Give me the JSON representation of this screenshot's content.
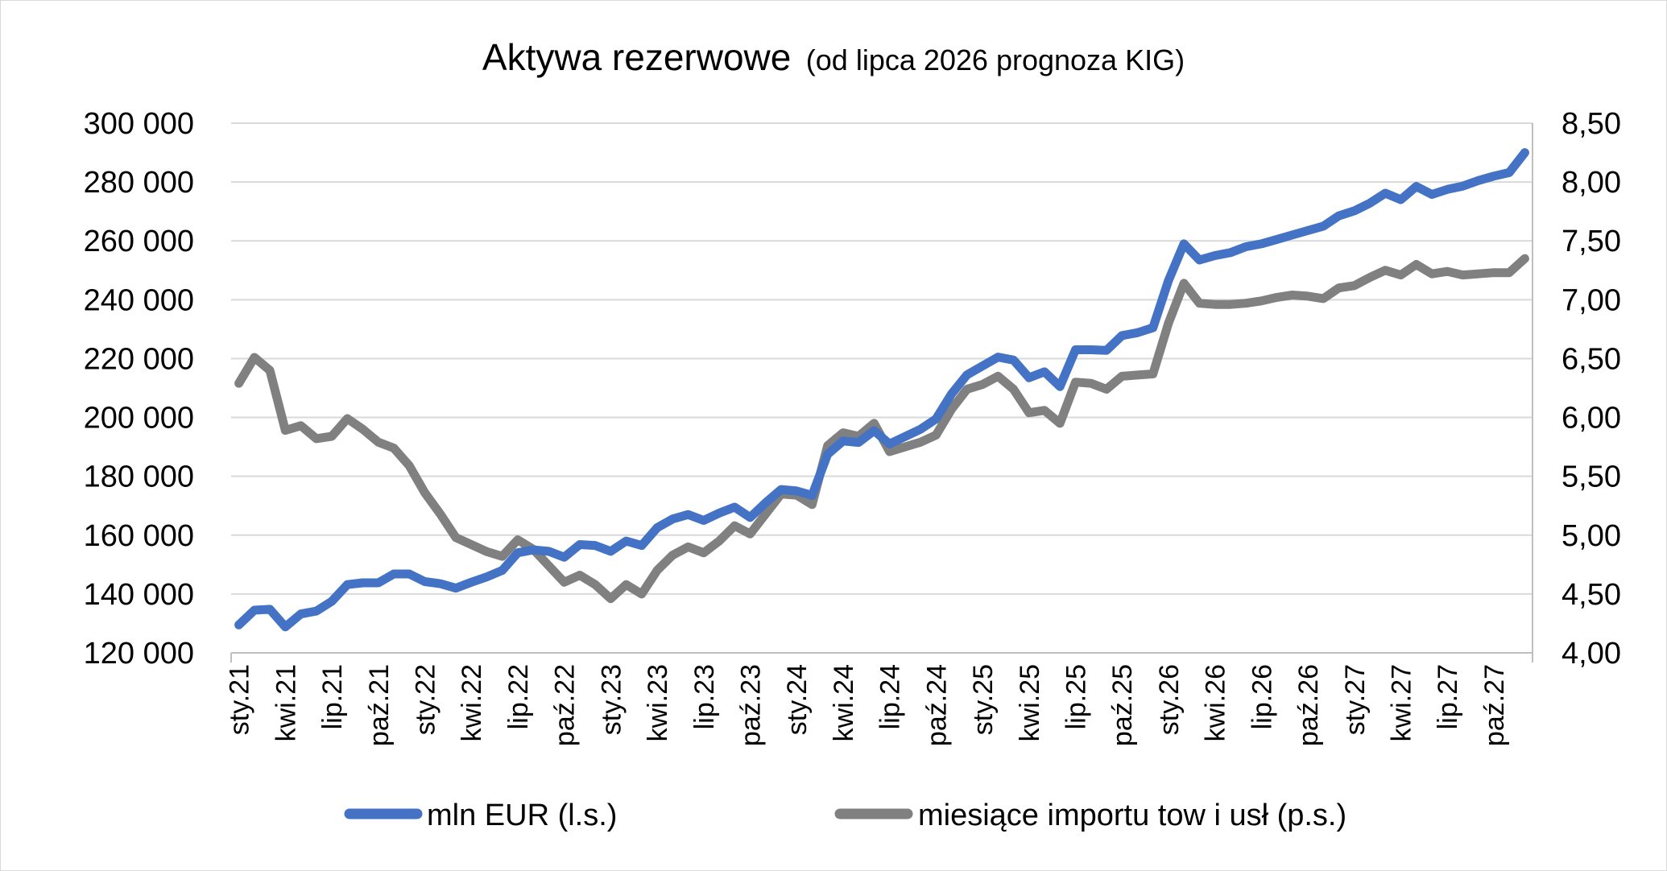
{
  "chart_data": {
    "type": "line",
    "title": "Aktywa rezerwowe",
    "subtitle": "(od lipca 2026 prognoza KIG)",
    "legend_position": "bottom",
    "grid": true,
    "y_left": {
      "min": 120000,
      "max": 300000,
      "step": 20000,
      "tick_labels": [
        "120 000",
        "140 000",
        "160 000",
        "180 000",
        "200 000",
        "220 000",
        "240 000",
        "260 000",
        "280 000",
        "300 000"
      ]
    },
    "y_right": {
      "min": 4.0,
      "max": 8.5,
      "step": 0.5,
      "tick_labels": [
        "4,00",
        "4,50",
        "5,00",
        "5,50",
        "6,00",
        "6,50",
        "7,00",
        "7,50",
        "8,00",
        "8,50"
      ]
    },
    "x_tick_labels": [
      "sty.21",
      "kwi.21",
      "lip.21",
      "paź.21",
      "sty.22",
      "kwi.22",
      "lip.22",
      "paź.22",
      "sty.23",
      "kwi.23",
      "lip.23",
      "paź.23",
      "sty.24",
      "kwi.24",
      "lip.24",
      "paź.24",
      "sty.25",
      "kwi.25",
      "lip.25",
      "paź.25",
      "sty.26",
      "kwi.26",
      "lip.26",
      "paź.26",
      "sty.27",
      "kwi.27",
      "lip.27",
      "paź.27"
    ],
    "series": [
      {
        "name": "mln EUR (l.s.)",
        "axis": "left",
        "color": "#4472C4",
        "values": [
          129500,
          134500,
          134800,
          128800,
          133200,
          134200,
          137500,
          143200,
          143800,
          143800,
          146800,
          146800,
          144200,
          143500,
          142000,
          144000,
          145800,
          148000,
          154000,
          155000,
          154500,
          152500,
          156800,
          156500,
          154500,
          158000,
          156500,
          162500,
          165500,
          167000,
          165000,
          167500,
          169500,
          166000,
          171000,
          175500,
          175000,
          173500,
          187500,
          192000,
          191500,
          195500,
          191000,
          193500,
          196000,
          199500,
          208000,
          214500,
          217500,
          220500,
          219500,
          213500,
          215500,
          210500,
          223000,
          223000,
          222800,
          227800,
          228800,
          230500,
          246500,
          259000,
          253500,
          255000,
          256000,
          258000,
          259000,
          260500,
          262000,
          263500,
          265000,
          268500,
          270200,
          272800,
          276200,
          274000,
          278500,
          275800,
          277500,
          278600,
          280500,
          282000,
          283200,
          290000
        ]
      },
      {
        "name": "miesiące importu tow i usł (p.s.)",
        "axis": "right",
        "color": "#808080",
        "values": [
          6.29,
          6.51,
          6.4,
          5.89,
          5.93,
          5.82,
          5.84,
          5.99,
          5.9,
          5.79,
          5.74,
          5.59,
          5.36,
          5.18,
          4.98,
          4.92,
          4.86,
          4.82,
          4.96,
          4.88,
          4.74,
          4.6,
          4.66,
          4.58,
          4.46,
          4.58,
          4.5,
          4.7,
          4.83,
          4.9,
          4.85,
          4.95,
          5.08,
          5.01,
          5.18,
          5.35,
          5.34,
          5.26,
          5.76,
          5.87,
          5.84,
          5.95,
          5.71,
          5.75,
          5.79,
          5.85,
          6.07,
          6.24,
          6.28,
          6.35,
          6.24,
          6.04,
          6.06,
          5.95,
          6.3,
          6.29,
          6.24,
          6.35,
          6.36,
          6.37,
          6.8,
          7.14,
          6.97,
          6.96,
          6.96,
          6.97,
          6.99,
          7.02,
          7.04,
          7.03,
          7.01,
          7.1,
          7.12,
          7.19,
          7.25,
          7.21,
          7.3,
          7.22,
          7.24,
          7.21,
          7.22,
          7.23,
          7.23,
          7.35
        ]
      }
    ]
  }
}
